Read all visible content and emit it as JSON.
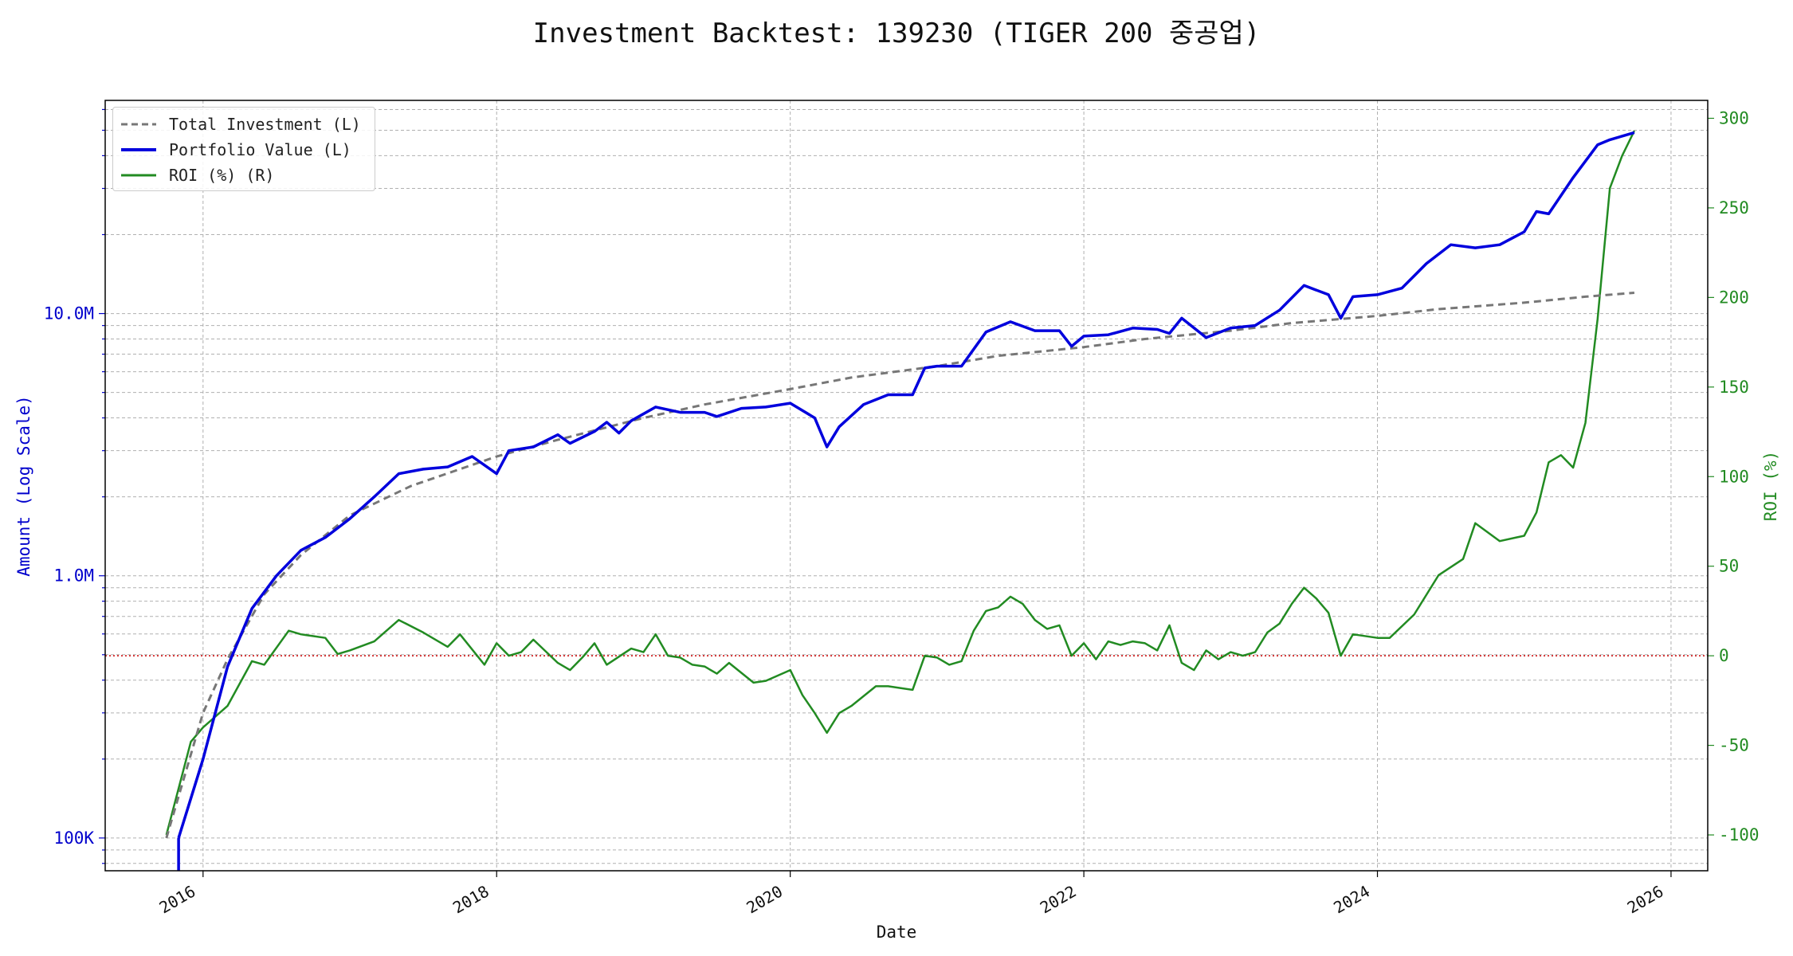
{
  "chart_data": {
    "type": "line",
    "title": "Investment Backtest: 139230 (TIGER 200 중공업)",
    "xlabel": "Date",
    "ylabel_left": "Amount (Log Scale)",
    "ylabel_right": "ROI (%)",
    "left_scale": "log",
    "left_ylim": [
      75000,
      65000000
    ],
    "right_ylim": [
      -120,
      310
    ],
    "xlim": [
      "2015-05-01",
      "2026-04-01"
    ],
    "x_ticks": [
      "2016",
      "2018",
      "2020",
      "2022",
      "2024",
      "2026"
    ],
    "left_ticks": [
      {
        "value": 100000,
        "label": "100K"
      },
      {
        "value": 1000000,
        "label": "1.0M"
      },
      {
        "value": 10000000,
        "label": "10.0M"
      }
    ],
    "right_ticks": [
      -100,
      -50,
      0,
      50,
      100,
      150,
      200,
      250,
      300
    ],
    "grid": true,
    "legend_position": "upper-left",
    "reference_line": {
      "axis": "right",
      "value": 0,
      "style": "dotted",
      "color": "#cc0000"
    },
    "colors": {
      "total_investment": "#777777",
      "portfolio_value": "#0000dd",
      "roi": "#228b22",
      "left_axis": "#0000cc",
      "right_axis": "#228b22"
    },
    "series": [
      {
        "name": "Total Investment (L)",
        "axis": "left",
        "style": "dashed",
        "dates": [
          "2015-10",
          "2016-01",
          "2016-03",
          "2016-06",
          "2016-09",
          "2017-01",
          "2017-06",
          "2018-01",
          "2018-06",
          "2019-01",
          "2019-06",
          "2020-01",
          "2020-06",
          "2021-01",
          "2021-06",
          "2022-01",
          "2022-06",
          "2023-01",
          "2023-06",
          "2024-01",
          "2024-06",
          "2025-01",
          "2025-06",
          "2025-10"
        ],
        "values": [
          100000,
          300000,
          480000,
          850000,
          1200000,
          1700000,
          2200000,
          2850000,
          3300000,
          4000000,
          4500000,
          5150000,
          5700000,
          6300000,
          6900000,
          7450000,
          8000000,
          8600000,
          9200000,
          9800000,
          10400000,
          11000000,
          11600000,
          12000000
        ]
      },
      {
        "name": "Portfolio Value (L)",
        "axis": "left",
        "style": "solid",
        "dates": [
          "2015-11",
          "2016-01",
          "2016-03",
          "2016-05",
          "2016-07",
          "2016-09",
          "2016-11",
          "2017-01",
          "2017-03",
          "2017-05",
          "2017-07",
          "2017-09",
          "2017-11",
          "2018-01",
          "2018-02",
          "2018-04",
          "2018-06",
          "2018-07",
          "2018-09",
          "2018-10",
          "2018-11",
          "2018-12",
          "2019-02",
          "2019-04",
          "2019-06",
          "2019-07",
          "2019-09",
          "2019-11",
          "2020-01",
          "2020-03",
          "2020-04",
          "2020-05",
          "2020-07",
          "2020-09",
          "2020-11",
          "2020-12",
          "2021-01",
          "2021-03",
          "2021-05",
          "2021-07",
          "2021-09",
          "2021-11",
          "2021-12",
          "2022-01",
          "2022-03",
          "2022-05",
          "2022-07",
          "2022-08",
          "2022-09",
          "2022-11",
          "2023-01",
          "2023-03",
          "2023-05",
          "2023-07",
          "2023-09",
          "2023-10",
          "2023-11",
          "2024-01",
          "2024-03",
          "2024-05",
          "2024-07",
          "2024-09",
          "2024-11",
          "2025-01",
          "2025-02",
          "2025-03",
          "2025-05",
          "2025-07",
          "2025-08",
          "2025-10"
        ],
        "values": [
          100000,
          200000,
          450000,
          750000,
          1000000,
          1250000,
          1400000,
          1650000,
          2000000,
          2450000,
          2550000,
          2600000,
          2850000,
          2450000,
          3000000,
          3100000,
          3450000,
          3200000,
          3550000,
          3850000,
          3500000,
          3900000,
          4400000,
          4200000,
          4200000,
          4050000,
          4350000,
          4400000,
          4550000,
          4000000,
          3100000,
          3700000,
          4500000,
          4900000,
          4900000,
          6200000,
          6300000,
          6300000,
          8500000,
          9300000,
          8600000,
          8600000,
          7500000,
          8200000,
          8300000,
          8800000,
          8700000,
          8400000,
          9600000,
          8100000,
          8800000,
          9000000,
          10300000,
          12800000,
          11800000,
          9600000,
          11600000,
          11800000,
          12500000,
          15500000,
          18300000,
          17800000,
          18300000,
          20500000,
          24500000,
          24000000,
          33000000,
          44000000,
          46000000,
          49000000
        ]
      },
      {
        "name": "ROI (%) (R)",
        "axis": "right",
        "style": "solid",
        "dates": [
          "2015-10",
          "2015-12",
          "2016-01",
          "2016-03",
          "2016-05",
          "2016-06",
          "2016-08",
          "2016-09",
          "2016-11",
          "2016-12",
          "2017-01",
          "2017-03",
          "2017-05",
          "2017-07",
          "2017-09",
          "2017-10",
          "2017-12",
          "2018-01",
          "2018-02",
          "2018-03",
          "2018-04",
          "2018-06",
          "2018-07",
          "2018-08",
          "2018-09",
          "2018-10",
          "2018-12",
          "2019-01",
          "2019-02",
          "2019-03",
          "2019-04",
          "2019-05",
          "2019-06",
          "2019-07",
          "2019-08",
          "2019-10",
          "2019-11",
          "2020-01",
          "2020-02",
          "2020-03",
          "2020-04",
          "2020-05",
          "2020-06",
          "2020-08",
          "2020-09",
          "2020-11",
          "2020-12",
          "2021-01",
          "2021-02",
          "2021-03",
          "2021-04",
          "2021-05",
          "2021-06",
          "2021-07",
          "2021-08",
          "2021-09",
          "2021-10",
          "2021-11",
          "2021-12",
          "2022-01",
          "2022-02",
          "2022-03",
          "2022-04",
          "2022-05",
          "2022-06",
          "2022-07",
          "2022-08",
          "2022-09",
          "2022-10",
          "2022-11",
          "2022-12",
          "2023-01",
          "2023-02",
          "2023-03",
          "2023-04",
          "2023-05",
          "2023-06",
          "2023-07",
          "2023-08",
          "2023-09",
          "2023-10",
          "2023-11",
          "2024-01",
          "2024-02",
          "2024-04",
          "2024-06",
          "2024-08",
          "2024-09",
          "2024-11",
          "2025-01",
          "2025-02",
          "2025-03",
          "2025-04",
          "2025-05",
          "2025-06",
          "2025-07",
          "2025-08",
          "2025-09",
          "2025-10"
        ],
        "values": [
          -100,
          -48,
          -40,
          -28,
          -3,
          -5,
          14,
          12,
          10,
          1,
          3,
          8,
          20,
          13,
          5,
          12,
          -5,
          7,
          0,
          2,
          9,
          -4,
          -8,
          -1,
          7,
          -5,
          4,
          2,
          12,
          0,
          -1,
          -5,
          -6,
          -10,
          -4,
          -15,
          -14,
          -8,
          -22,
          -32,
          -43,
          -32,
          -28,
          -17,
          -17,
          -19,
          0,
          -1,
          -5,
          -3,
          14,
          25,
          27,
          33,
          29,
          20,
          15,
          17,
          0,
          7,
          -2,
          8,
          6,
          8,
          7,
          3,
          17,
          -4,
          -8,
          3,
          -2,
          2,
          0,
          2,
          13,
          18,
          29,
          38,
          32,
          24,
          0,
          12,
          10,
          10,
          23,
          45,
          54,
          74,
          64,
          67,
          80,
          108,
          112,
          105,
          130,
          188,
          261,
          279,
          293
        ]
      }
    ]
  }
}
